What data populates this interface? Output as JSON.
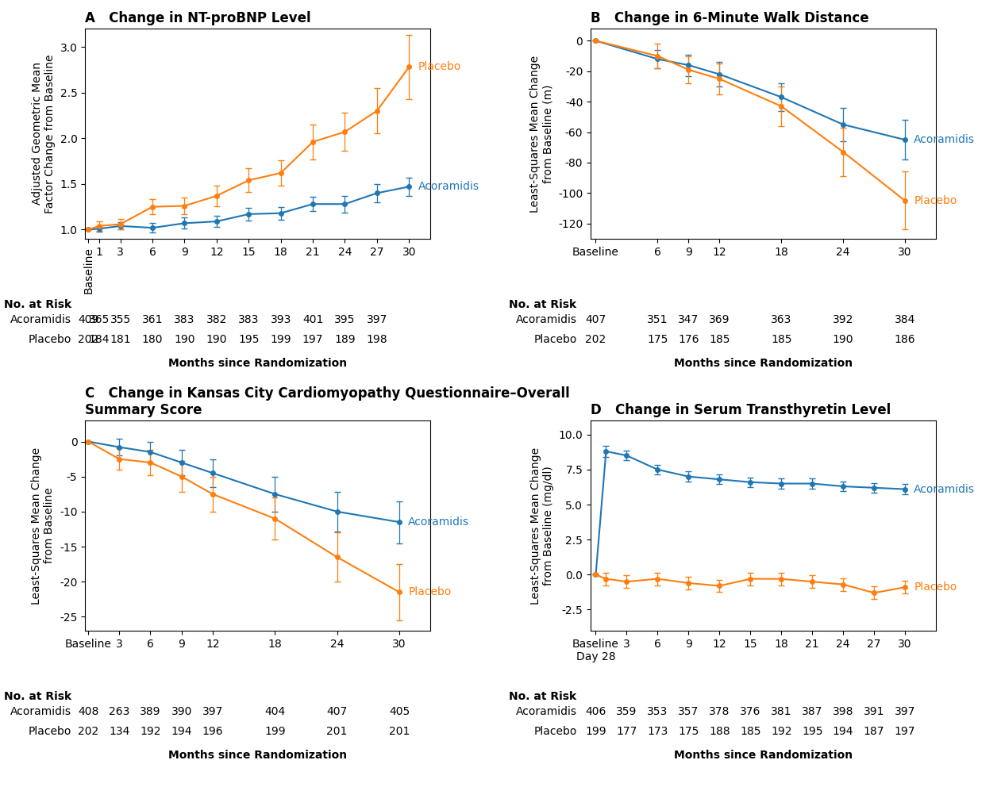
{
  "chart_data": [
    {
      "type": "line",
      "title": "A   Change in NT-proBNP Level",
      "x_label": "Months since Randomization",
      "y_label": "Adjusted Geometric Mean\nFactor Change from Baseline",
      "xlim": [
        -0.3,
        32
      ],
      "xticks": [
        {
          "value": 0,
          "label": "Baseline"
        },
        1,
        3,
        6,
        9,
        12,
        15,
        18,
        21,
        24,
        27,
        30
      ],
      "ylim": [
        0.9,
        3.2
      ],
      "yticks": [
        1.0,
        1.5,
        2.0,
        2.5,
        3.0
      ],
      "series": [
        {
          "name": "Acoramidis",
          "marker": "o",
          "x": [
            0,
            1,
            3,
            6,
            9,
            12,
            15,
            18,
            21,
            24,
            27,
            30
          ],
          "values": [
            1.0,
            1.01,
            1.04,
            1.02,
            1.07,
            1.09,
            1.17,
            1.18,
            1.28,
            1.28,
            1.4,
            1.47
          ],
          "error": [
            0.0,
            0.03,
            0.04,
            0.05,
            0.06,
            0.06,
            0.07,
            0.07,
            0.08,
            0.09,
            0.1,
            0.1
          ]
        },
        {
          "name": "Placebo",
          "marker": "o",
          "x": [
            0,
            1,
            3,
            6,
            9,
            12,
            15,
            18,
            21,
            24,
            27,
            30
          ],
          "values": [
            1.0,
            1.04,
            1.06,
            1.25,
            1.26,
            1.37,
            1.54,
            1.62,
            1.96,
            2.07,
            2.3,
            2.78
          ],
          "error": [
            0.0,
            0.05,
            0.06,
            0.08,
            0.09,
            0.11,
            0.13,
            0.14,
            0.19,
            0.21,
            0.25,
            0.35
          ]
        }
      ],
      "at_risk": {
        "title": "No. at Risk",
        "x": [
          0,
          1,
          3,
          6,
          9,
          12,
          15,
          18,
          21,
          24,
          27
        ],
        "rows": [
          {
            "name": "Acoramidis",
            "values": [
              409,
              365,
              355,
              361,
              383,
              382,
              383,
              393,
              401,
              395,
              397
            ]
          },
          {
            "name": "Placebo",
            "values": [
              202,
              184,
              181,
              180,
              190,
              190,
              195,
              199,
              197,
              189,
              198
            ]
          }
        ]
      }
    },
    {
      "type": "line",
      "title": "B   Change in 6-Minute Walk Distance",
      "x_label": "Months since Randomization",
      "y_label": "Least-Squares Mean Change\nfrom Baseline (m)",
      "xlim": [
        -0.5,
        33
      ],
      "xticks": [
        {
          "value": 0,
          "label": "Baseline"
        },
        6,
        9,
        12,
        18,
        24,
        30
      ],
      "ylim": [
        -130,
        8
      ],
      "yticks": [
        0,
        -20,
        -40,
        -60,
        -80,
        -100,
        -120
      ],
      "series": [
        {
          "name": "Acoramidis",
          "marker": "o",
          "x": [
            0,
            6,
            9,
            12,
            18,
            24,
            30
          ],
          "values": [
            0,
            -12,
            -16,
            -22,
            -37,
            -55,
            -65
          ],
          "error": [
            0,
            6,
            7,
            8,
            9,
            11,
            13
          ]
        },
        {
          "name": "Placebo",
          "marker": "o",
          "x": [
            0,
            6,
            9,
            12,
            18,
            24,
            30
          ],
          "values": [
            0,
            -10,
            -19,
            -25,
            -43,
            -73,
            -105
          ],
          "error": [
            0,
            8,
            9,
            10,
            13,
            16,
            19
          ]
        }
      ],
      "at_risk": {
        "title": "No. at Risk",
        "x": [
          0,
          6,
          9,
          12,
          18,
          24,
          30
        ],
        "rows": [
          {
            "name": "Acoramidis",
            "values": [
              407,
              351,
              347,
              369,
              363,
              392,
              384
            ]
          },
          {
            "name": "Placebo",
            "values": [
              202,
              175,
              176,
              185,
              185,
              190,
              186
            ]
          }
        ]
      }
    },
    {
      "type": "line",
      "title": "C   Change in Kansas City Cardiomyopathy Questionnaire–Overall\nSummary Score",
      "x_label": "Months since Randomization",
      "y_label": "Least-Squares Mean Change\nfrom Baseline",
      "xlim": [
        -0.3,
        33
      ],
      "xticks": [
        {
          "value": 0,
          "label": "Baseline"
        },
        3,
        6,
        9,
        12,
        18,
        24,
        30
      ],
      "ylim": [
        -27,
        3
      ],
      "yticks": [
        0,
        -5,
        -10,
        -15,
        -20,
        -25
      ],
      "series": [
        {
          "name": "Acoramidis",
          "marker": "o",
          "x": [
            0,
            3,
            6,
            9,
            12,
            18,
            24,
            30
          ],
          "values": [
            0,
            -0.8,
            -1.5,
            -3.0,
            -4.5,
            -7.5,
            -10.0,
            -11.5
          ],
          "error": [
            0,
            1.2,
            1.5,
            1.8,
            2.0,
            2.5,
            2.8,
            3.0
          ]
        },
        {
          "name": "Placebo",
          "marker": "o",
          "x": [
            0,
            3,
            6,
            9,
            12,
            18,
            24,
            30
          ],
          "values": [
            0,
            -2.5,
            -3.0,
            -5.0,
            -7.5,
            -11.0,
            -16.5,
            -21.5
          ],
          "error": [
            0,
            1.5,
            1.8,
            2.2,
            2.5,
            3.0,
            3.5,
            4.0
          ]
        }
      ],
      "at_risk": {
        "title": "No. at Risk",
        "x": [
          0,
          3,
          6,
          9,
          12,
          18,
          24,
          30
        ],
        "rows": [
          {
            "name": "Acoramidis",
            "values": [
              408,
              263,
              389,
              390,
              397,
              404,
              407,
              405
            ]
          },
          {
            "name": "Placebo",
            "values": [
              202,
              134,
              192,
              194,
              196,
              199,
              201,
              201
            ]
          }
        ]
      }
    },
    {
      "type": "line",
      "title": "D   Change in Serum Transthyretin Level",
      "x_label": "Months since Randomization",
      "y_label": "Least-Squares Mean Change\nfrom Baseline (mg/dl)",
      "xlim": [
        -0.5,
        33
      ],
      "xticks": [
        {
          "value": 0,
          "label": "Baseline\nDay 28"
        },
        3,
        6,
        9,
        12,
        15,
        18,
        21,
        24,
        27,
        30
      ],
      "ylim": [
        -4.0,
        11.0
      ],
      "yticks": [
        -2.5,
        0.0,
        2.5,
        5.0,
        7.5,
        10.0
      ],
      "series": [
        {
          "name": "Acoramidis",
          "marker": "o",
          "x": [
            0,
            1,
            3,
            6,
            9,
            12,
            15,
            18,
            21,
            24,
            27,
            30
          ],
          "values": [
            0,
            8.8,
            8.5,
            7.5,
            7.0,
            6.8,
            6.6,
            6.5,
            6.5,
            6.3,
            6.2,
            6.1
          ],
          "error": [
            0.0,
            0.4,
            0.35,
            0.35,
            0.35,
            0.35,
            0.35,
            0.35,
            0.35,
            0.35,
            0.35,
            0.35
          ]
        },
        {
          "name": "Placebo",
          "marker": "o",
          "x": [
            0,
            1,
            3,
            6,
            9,
            12,
            15,
            18,
            21,
            24,
            27,
            30
          ],
          "values": [
            0,
            -0.3,
            -0.5,
            -0.3,
            -0.6,
            -0.8,
            -0.3,
            -0.3,
            -0.5,
            -0.7,
            -1.3,
            -0.9
          ],
          "error": [
            0.0,
            0.45,
            0.45,
            0.45,
            0.45,
            0.45,
            0.45,
            0.45,
            0.45,
            0.45,
            0.45,
            0.45
          ]
        }
      ],
      "at_risk": {
        "title": "No. at Risk",
        "x": [
          0,
          3,
          6,
          9,
          12,
          15,
          18,
          21,
          24,
          27,
          30
        ],
        "rows": [
          {
            "name": "Acoramidis",
            "values": [
              406,
              359,
              353,
              357,
              378,
              376,
              381,
              387,
              398,
              391,
              397
            ]
          },
          {
            "name": "Placebo",
            "values": [
              199,
              177,
              173,
              175,
              188,
              185,
              192,
              195,
              194,
              187,
              197
            ]
          }
        ]
      }
    }
  ]
}
